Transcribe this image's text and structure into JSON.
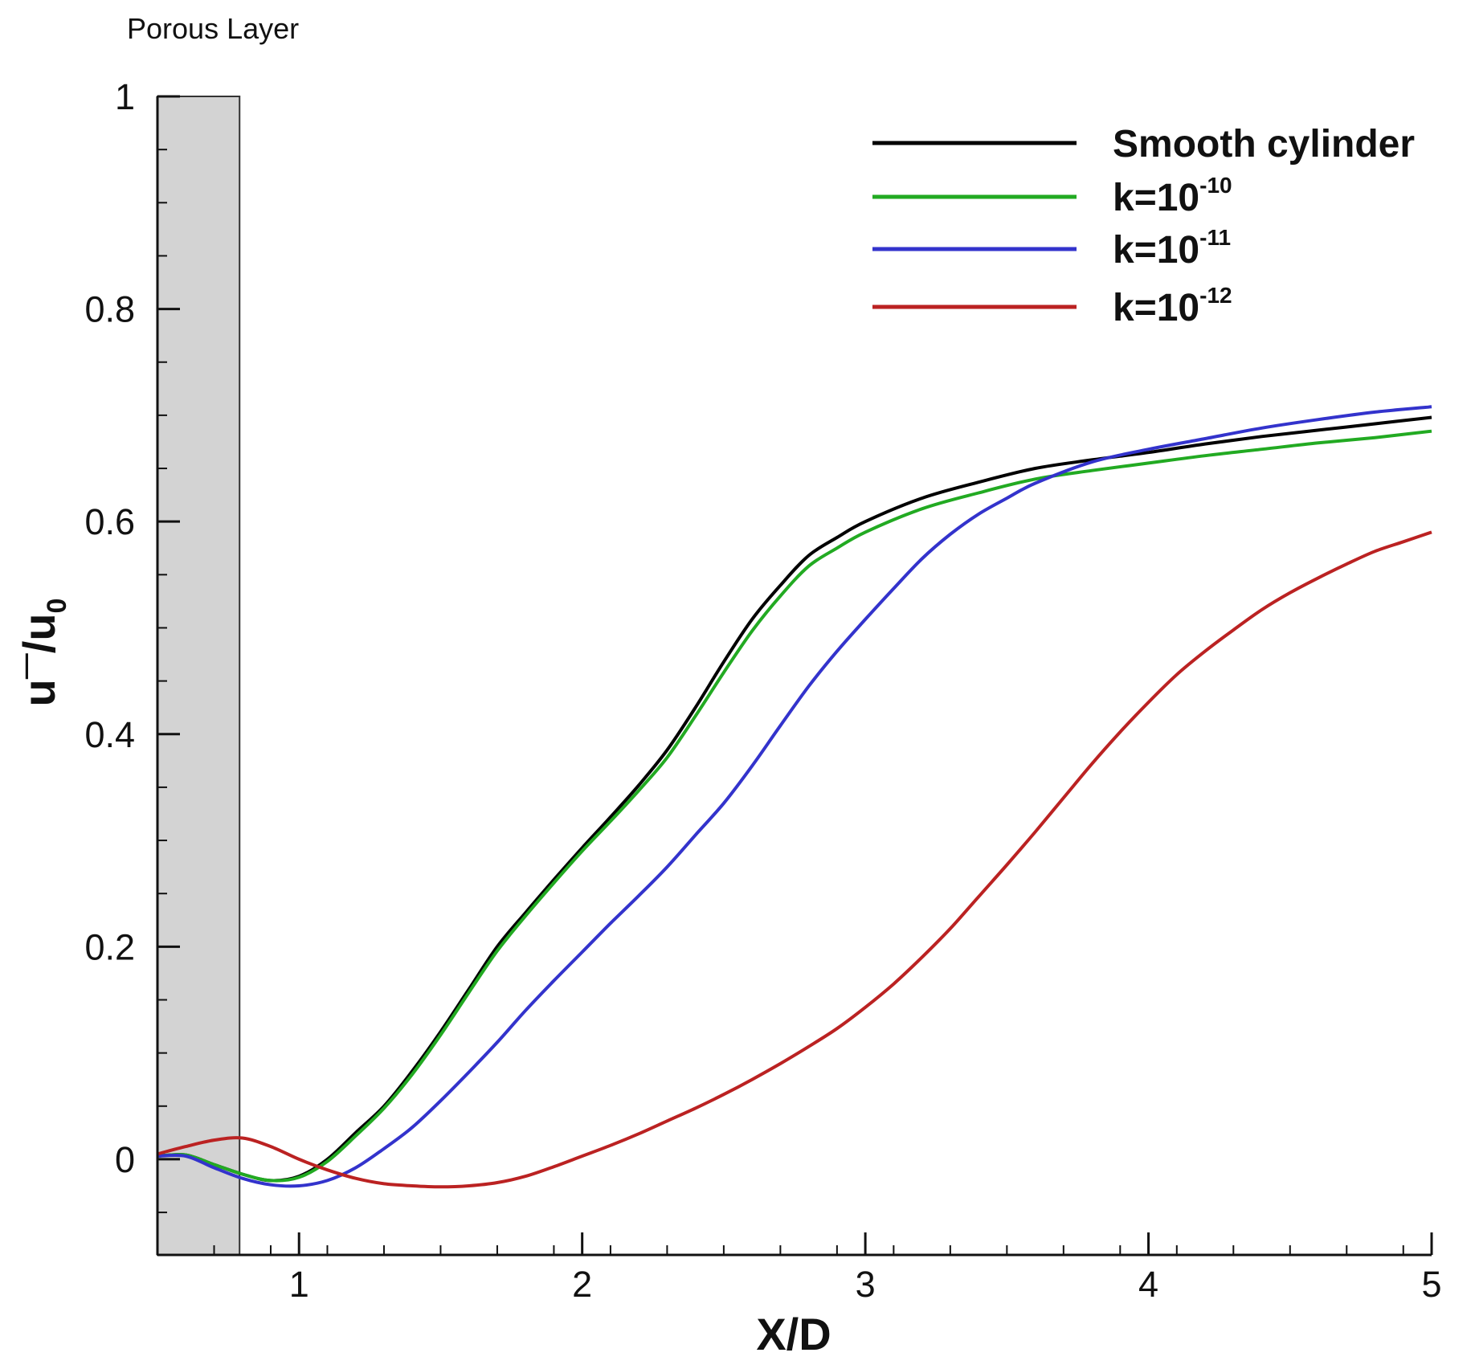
{
  "chart_data": {
    "type": "line",
    "title": "",
    "xlabel": "X/D",
    "ylabel": "u‾/u0",
    "ylabel_parts": {
      "main": "u",
      "overline_mark": "—",
      "slash": "/u",
      "subscript": "0"
    },
    "xlim": [
      0.5,
      5
    ],
    "ylim": [
      -0.09,
      1
    ],
    "x_ticks": [
      1,
      2,
      3,
      4,
      5
    ],
    "x_tick_labels": [
      "1",
      "2",
      "3",
      "4",
      "5"
    ],
    "x_minor_step": 0.2,
    "y_ticks": [
      0,
      0.2,
      0.4,
      0.6,
      0.8,
      1
    ],
    "y_tick_labels": [
      "0",
      "0.2",
      "0.4",
      "0.6",
      "0.8",
      "1"
    ],
    "y_minor_step": 0.05,
    "grid": false,
    "legend_position": "top-right",
    "shaded_region": {
      "label": "Porous Layer",
      "x_range": [
        0.5,
        0.79
      ],
      "color": "#d3d3d3"
    },
    "series": [
      {
        "name": "Smooth cylinder",
        "base": "Smooth cylinder",
        "exp": "",
        "color": "#000000",
        "points": [
          [
            0.5,
            0.003
          ],
          [
            0.6,
            0.004
          ],
          [
            0.7,
            -0.005
          ],
          [
            0.8,
            -0.014
          ],
          [
            0.9,
            -0.02
          ],
          [
            1.0,
            -0.016
          ],
          [
            1.1,
            0.0
          ],
          [
            1.2,
            0.025
          ],
          [
            1.3,
            0.05
          ],
          [
            1.4,
            0.083
          ],
          [
            1.5,
            0.12
          ],
          [
            1.6,
            0.16
          ],
          [
            1.7,
            0.2
          ],
          [
            1.8,
            0.232
          ],
          [
            1.9,
            0.263
          ],
          [
            2.0,
            0.293
          ],
          [
            2.1,
            0.322
          ],
          [
            2.2,
            0.352
          ],
          [
            2.3,
            0.385
          ],
          [
            2.4,
            0.425
          ],
          [
            2.5,
            0.468
          ],
          [
            2.6,
            0.508
          ],
          [
            2.7,
            0.54
          ],
          [
            2.8,
            0.568
          ],
          [
            2.9,
            0.585
          ],
          [
            3.0,
            0.6
          ],
          [
            3.2,
            0.622
          ],
          [
            3.4,
            0.637
          ],
          [
            3.6,
            0.65
          ],
          [
            3.8,
            0.658
          ],
          [
            4.0,
            0.665
          ],
          [
            4.2,
            0.673
          ],
          [
            4.4,
            0.68
          ],
          [
            4.6,
            0.686
          ],
          [
            4.8,
            0.692
          ],
          [
            5.0,
            0.698
          ]
        ]
      },
      {
        "name": "k=10-10",
        "base": "k=10",
        "exp": "-10",
        "color": "#22aa22",
        "points": [
          [
            0.5,
            0.003
          ],
          [
            0.6,
            0.004
          ],
          [
            0.7,
            -0.005
          ],
          [
            0.8,
            -0.014
          ],
          [
            0.9,
            -0.02
          ],
          [
            1.0,
            -0.017
          ],
          [
            1.1,
            -0.002
          ],
          [
            1.2,
            0.022
          ],
          [
            1.3,
            0.048
          ],
          [
            1.4,
            0.08
          ],
          [
            1.5,
            0.117
          ],
          [
            1.6,
            0.157
          ],
          [
            1.7,
            0.196
          ],
          [
            1.8,
            0.229
          ],
          [
            1.9,
            0.26
          ],
          [
            2.0,
            0.29
          ],
          [
            2.1,
            0.318
          ],
          [
            2.2,
            0.347
          ],
          [
            2.3,
            0.378
          ],
          [
            2.4,
            0.417
          ],
          [
            2.5,
            0.458
          ],
          [
            2.6,
            0.497
          ],
          [
            2.7,
            0.53
          ],
          [
            2.8,
            0.558
          ],
          [
            2.9,
            0.575
          ],
          [
            3.0,
            0.59
          ],
          [
            3.2,
            0.612
          ],
          [
            3.4,
            0.627
          ],
          [
            3.6,
            0.64
          ],
          [
            3.8,
            0.648
          ],
          [
            4.0,
            0.655
          ],
          [
            4.2,
            0.662
          ],
          [
            4.4,
            0.668
          ],
          [
            4.6,
            0.674
          ],
          [
            4.8,
            0.679
          ],
          [
            5.0,
            0.685
          ]
        ]
      },
      {
        "name": "k=10-11",
        "base": "k=10",
        "exp": "-11",
        "color": "#3333cc",
        "points": [
          [
            0.5,
            0.003
          ],
          [
            0.6,
            0.003
          ],
          [
            0.7,
            -0.008
          ],
          [
            0.8,
            -0.018
          ],
          [
            0.9,
            -0.024
          ],
          [
            1.0,
            -0.025
          ],
          [
            1.1,
            -0.02
          ],
          [
            1.2,
            -0.008
          ],
          [
            1.3,
            0.01
          ],
          [
            1.4,
            0.03
          ],
          [
            1.5,
            0.055
          ],
          [
            1.6,
            0.082
          ],
          [
            1.7,
            0.11
          ],
          [
            1.8,
            0.14
          ],
          [
            1.9,
            0.168
          ],
          [
            2.0,
            0.195
          ],
          [
            2.1,
            0.222
          ],
          [
            2.2,
            0.248
          ],
          [
            2.3,
            0.275
          ],
          [
            2.4,
            0.305
          ],
          [
            2.5,
            0.335
          ],
          [
            2.6,
            0.37
          ],
          [
            2.7,
            0.408
          ],
          [
            2.8,
            0.445
          ],
          [
            2.9,
            0.478
          ],
          [
            3.0,
            0.508
          ],
          [
            3.1,
            0.537
          ],
          [
            3.2,
            0.565
          ],
          [
            3.3,
            0.588
          ],
          [
            3.4,
            0.607
          ],
          [
            3.5,
            0.622
          ],
          [
            3.6,
            0.636
          ],
          [
            3.8,
            0.656
          ],
          [
            4.0,
            0.668
          ],
          [
            4.2,
            0.678
          ],
          [
            4.4,
            0.688
          ],
          [
            4.6,
            0.696
          ],
          [
            4.8,
            0.703
          ],
          [
            5.0,
            0.708
          ]
        ]
      },
      {
        "name": "k=10-12",
        "base": "k=10",
        "exp": "-12",
        "color": "#bb2222",
        "points": [
          [
            0.5,
            0.005
          ],
          [
            0.6,
            0.012
          ],
          [
            0.7,
            0.018
          ],
          [
            0.8,
            0.02
          ],
          [
            0.9,
            0.012
          ],
          [
            1.0,
            0.0
          ],
          [
            1.1,
            -0.01
          ],
          [
            1.2,
            -0.018
          ],
          [
            1.3,
            -0.023
          ],
          [
            1.4,
            -0.025
          ],
          [
            1.5,
            -0.026
          ],
          [
            1.6,
            -0.025
          ],
          [
            1.7,
            -0.022
          ],
          [
            1.8,
            -0.016
          ],
          [
            1.9,
            -0.007
          ],
          [
            2.0,
            0.003
          ],
          [
            2.1,
            0.013
          ],
          [
            2.2,
            0.024
          ],
          [
            2.3,
            0.036
          ],
          [
            2.4,
            0.048
          ],
          [
            2.5,
            0.061
          ],
          [
            2.6,
            0.075
          ],
          [
            2.7,
            0.09
          ],
          [
            2.8,
            0.106
          ],
          [
            2.9,
            0.123
          ],
          [
            3.0,
            0.143
          ],
          [
            3.1,
            0.165
          ],
          [
            3.2,
            0.19
          ],
          [
            3.3,
            0.217
          ],
          [
            3.4,
            0.247
          ],
          [
            3.5,
            0.277
          ],
          [
            3.6,
            0.308
          ],
          [
            3.7,
            0.34
          ],
          [
            3.8,
            0.372
          ],
          [
            3.9,
            0.402
          ],
          [
            4.0,
            0.43
          ],
          [
            4.1,
            0.456
          ],
          [
            4.2,
            0.478
          ],
          [
            4.3,
            0.498
          ],
          [
            4.4,
            0.517
          ],
          [
            4.5,
            0.533
          ],
          [
            4.6,
            0.547
          ],
          [
            4.7,
            0.56
          ],
          [
            4.8,
            0.572
          ],
          [
            4.9,
            0.581
          ],
          [
            5.0,
            0.59
          ]
        ]
      }
    ]
  }
}
